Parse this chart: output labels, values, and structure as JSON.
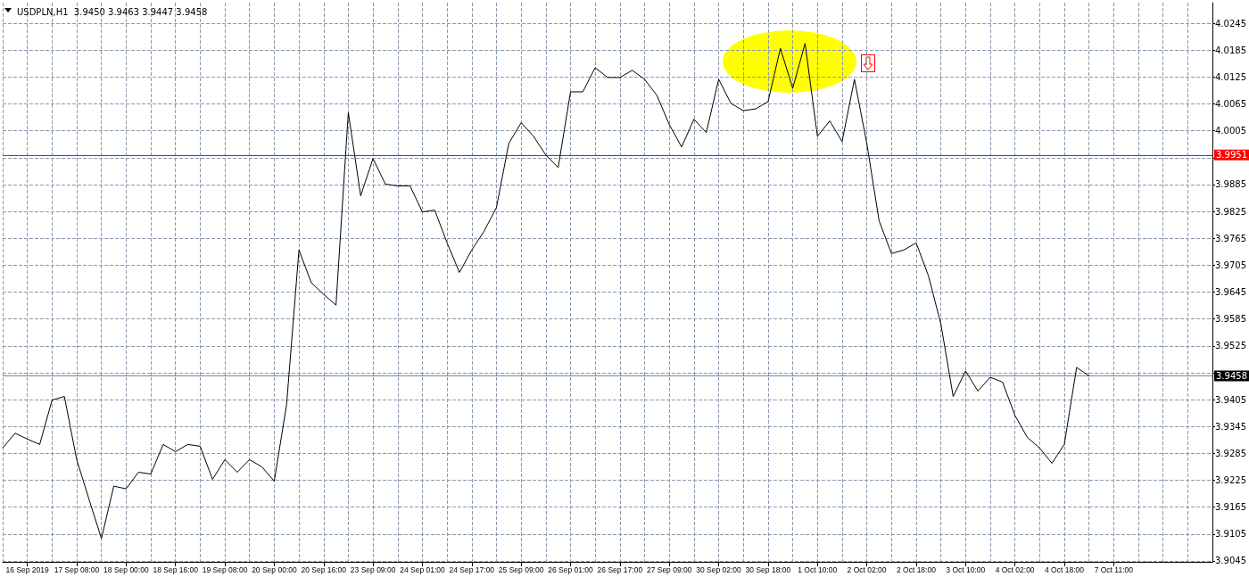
{
  "chart_data": {
    "type": "line",
    "title": "USDPLN,H1  3.9450 3.9463 3.9447 3.9458",
    "categories": [
      null,
      null,
      "16 Sep 2019",
      null,
      null,
      null,
      "17 Sep 08:00",
      null,
      null,
      null,
      "18 Sep 00:00",
      null,
      null,
      null,
      "18 Sep 16:00",
      null,
      null,
      null,
      "19 Sep 08:00",
      null,
      null,
      null,
      "20 Sep 00:00",
      null,
      null,
      null,
      "20 Sep 16:00",
      null,
      null,
      null,
      "23 Sep 09:00",
      null,
      null,
      null,
      "24 Sep 01:00",
      null,
      null,
      null,
      "24 Sep 17:00",
      null,
      null,
      null,
      "25 Sep 09:00",
      null,
      null,
      null,
      "26 Sep 01:00",
      null,
      null,
      null,
      "26 Sep 17:00",
      null,
      null,
      null,
      "27 Sep 09:00",
      null,
      null,
      null,
      "30 Sep 02:00",
      null,
      null,
      null,
      "30 Sep 18:00",
      null,
      null,
      null,
      "1 Oct 10:00",
      null,
      null,
      null,
      "2 Oct 02:00",
      null,
      null,
      null,
      "2 Oct 18:00",
      null,
      null,
      null,
      "3 Oct 10:00",
      null,
      null,
      null,
      "4 Oct 02:00",
      null,
      null,
      null,
      "4 Oct 18:00",
      null,
      null,
      null,
      "7 Oct 11:00",
      null,
      null,
      null,
      null,
      null,
      null,
      null,
      null
    ],
    "series": [
      {
        "color": "#000000",
        "values": [
          3.9297,
          3.933,
          3.9317,
          3.9305,
          3.9404,
          3.9412,
          3.9271,
          3.9182,
          3.9095,
          3.9212,
          3.9206,
          3.9243,
          3.9239,
          3.9305,
          3.9289,
          3.9305,
          3.9301,
          3.9227,
          3.9271,
          3.9243,
          3.9271,
          3.9255,
          3.9223,
          3.9394,
          3.9739,
          3.9666,
          3.964,
          3.9616,
          4.0046,
          3.986,
          3.9943,
          3.9886,
          3.9882,
          3.9882,
          3.9824,
          3.9828,
          3.9755,
          3.9689,
          3.9739,
          3.9781,
          3.9834,
          3.9977,
          4.0023,
          3.9993,
          3.9951,
          3.9923,
          4.0092,
          4.0092,
          4.0146,
          4.0124,
          4.0124,
          4.014,
          4.012,
          4.0084,
          4.0019,
          3.9969,
          4.0031,
          4.0001,
          4.012,
          4.0066,
          4.005,
          4.0054,
          4.007,
          4.0189,
          4.01,
          4.02,
          3.9993,
          4.0027,
          3.9981,
          4.012,
          3.9977,
          3.9804,
          3.9731,
          3.9739,
          3.9755,
          3.9681,
          3.9574,
          3.9412,
          3.9469,
          3.9424,
          3.9455,
          3.9444,
          3.937,
          3.9321,
          3.9297,
          3.9263,
          3.9305,
          3.9477,
          3.9458,
          null,
          null,
          null,
          null,
          null,
          null,
          null,
          null,
          null,
          null
        ]
      }
    ],
    "ylim": [
      3.9043,
      4.0291
    ],
    "yticks": [
      3.9045,
      3.9105,
      3.9165,
      3.9225,
      3.9285,
      3.9345,
      3.9405,
      {
        "value": 3.9465,
        "label": null
      },
      3.9525,
      3.9585,
      3.9645,
      3.9705,
      3.9765,
      3.9825,
      3.9885,
      {
        "value": 3.9945,
        "label": null
      },
      4.0005,
      4.0065,
      4.0125,
      4.0185,
      4.0245
    ],
    "ref_lines": [
      {
        "axis": "y",
        "value": 3.9951,
        "label": "3.9951",
        "color": "#ff0000"
      },
      {
        "axis": "y",
        "value": 3.9458,
        "label": "3.9458",
        "color": "#778899"
      }
    ],
    "grid": true,
    "marker": "none",
    "line_style": "solid"
  }
}
